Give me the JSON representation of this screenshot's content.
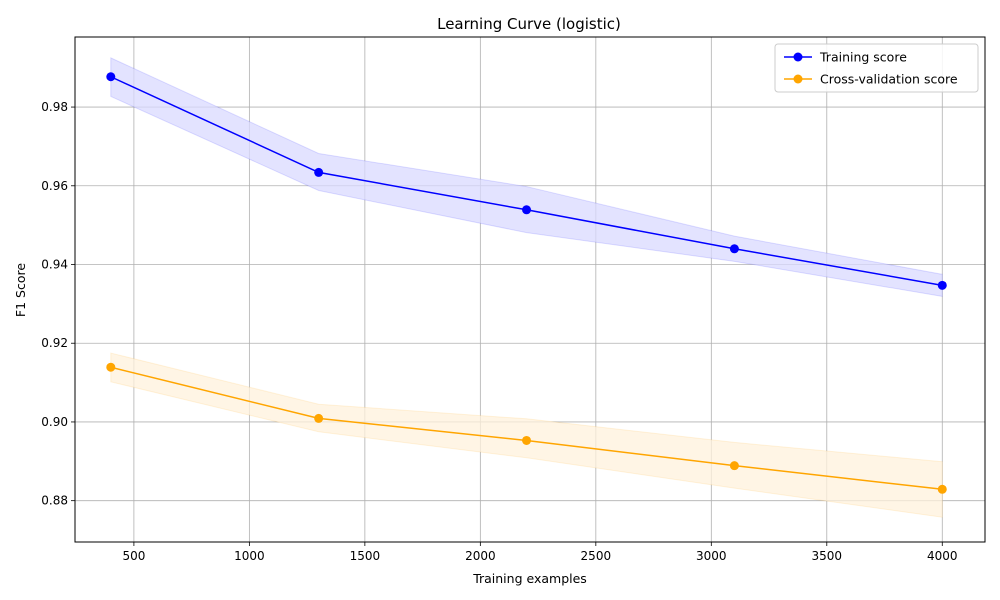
{
  "chart_data": {
    "type": "line",
    "title": "Learning Curve (logistic)",
    "xlabel": "Training examples",
    "ylabel": "F1 Score",
    "xlim": [
      245,
      4185
    ],
    "ylim": [
      0.8695,
      0.9978
    ],
    "xticks": [
      500,
      1000,
      1500,
      2000,
      2500,
      3000,
      3500,
      4000
    ],
    "yticks": [
      0.88,
      0.9,
      0.92,
      0.94,
      0.96,
      0.98
    ],
    "xtick_labels": [
      "500",
      "1000",
      "1500",
      "2000",
      "2500",
      "3000",
      "3500",
      "4000"
    ],
    "ytick_labels": [
      "0.88",
      "0.90",
      "0.92",
      "0.94",
      "0.96",
      "0.98"
    ],
    "grid": true,
    "legend_position": "top-right",
    "x": [
      400,
      1300,
      2200,
      3100,
      4000
    ],
    "series": [
      {
        "name": "Training score",
        "color": "#0000ff",
        "band_color": "#d9d9ff",
        "values": [
          0.9877,
          0.9634,
          0.9539,
          0.944,
          0.9347
        ],
        "upper": [
          0.9925,
          0.9682,
          0.9598,
          0.9472,
          0.9375
        ],
        "lower": [
          0.9827,
          0.9588,
          0.9481,
          0.9408,
          0.9319
        ]
      },
      {
        "name": "Cross-validation score",
        "color": "#ffa500",
        "band_color": "#fff2dc",
        "values": [
          0.9139,
          0.9009,
          0.8953,
          0.8889,
          0.8829
        ],
        "upper": [
          0.9175,
          0.9045,
          0.9008,
          0.8948,
          0.8899
        ],
        "lower": [
          0.9102,
          0.8975,
          0.8909,
          0.8832,
          0.8758
        ]
      }
    ]
  }
}
